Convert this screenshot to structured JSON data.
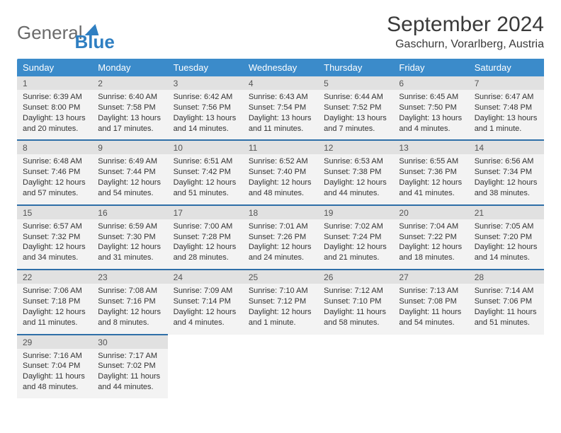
{
  "logo": {
    "general": "General",
    "blue": "Blue"
  },
  "title": "September 2024",
  "location": "Gaschurn, Vorarlberg, Austria",
  "headers": [
    "Sunday",
    "Monday",
    "Tuesday",
    "Wednesday",
    "Thursday",
    "Friday",
    "Saturday"
  ],
  "colors": {
    "header_bg": "#3b8bca",
    "accent": "#2f6fa8",
    "daynum_bg": "#e1e1e1",
    "cell_bg": "#f3f3f3"
  },
  "weeks": [
    {
      "nums": [
        "1",
        "2",
        "3",
        "4",
        "5",
        "6",
        "7"
      ],
      "cells": [
        {
          "sr": "Sunrise: 6:39 AM",
          "ss": "Sunset: 8:00 PM",
          "dl": "Daylight: 13 hours and 20 minutes."
        },
        {
          "sr": "Sunrise: 6:40 AM",
          "ss": "Sunset: 7:58 PM",
          "dl": "Daylight: 13 hours and 17 minutes."
        },
        {
          "sr": "Sunrise: 6:42 AM",
          "ss": "Sunset: 7:56 PM",
          "dl": "Daylight: 13 hours and 14 minutes."
        },
        {
          "sr": "Sunrise: 6:43 AM",
          "ss": "Sunset: 7:54 PM",
          "dl": "Daylight: 13 hours and 11 minutes."
        },
        {
          "sr": "Sunrise: 6:44 AM",
          "ss": "Sunset: 7:52 PM",
          "dl": "Daylight: 13 hours and 7 minutes."
        },
        {
          "sr": "Sunrise: 6:45 AM",
          "ss": "Sunset: 7:50 PM",
          "dl": "Daylight: 13 hours and 4 minutes."
        },
        {
          "sr": "Sunrise: 6:47 AM",
          "ss": "Sunset: 7:48 PM",
          "dl": "Daylight: 13 hours and 1 minute."
        }
      ]
    },
    {
      "nums": [
        "8",
        "9",
        "10",
        "11",
        "12",
        "13",
        "14"
      ],
      "cells": [
        {
          "sr": "Sunrise: 6:48 AM",
          "ss": "Sunset: 7:46 PM",
          "dl": "Daylight: 12 hours and 57 minutes."
        },
        {
          "sr": "Sunrise: 6:49 AM",
          "ss": "Sunset: 7:44 PM",
          "dl": "Daylight: 12 hours and 54 minutes."
        },
        {
          "sr": "Sunrise: 6:51 AM",
          "ss": "Sunset: 7:42 PM",
          "dl": "Daylight: 12 hours and 51 minutes."
        },
        {
          "sr": "Sunrise: 6:52 AM",
          "ss": "Sunset: 7:40 PM",
          "dl": "Daylight: 12 hours and 48 minutes."
        },
        {
          "sr": "Sunrise: 6:53 AM",
          "ss": "Sunset: 7:38 PM",
          "dl": "Daylight: 12 hours and 44 minutes."
        },
        {
          "sr": "Sunrise: 6:55 AM",
          "ss": "Sunset: 7:36 PM",
          "dl": "Daylight: 12 hours and 41 minutes."
        },
        {
          "sr": "Sunrise: 6:56 AM",
          "ss": "Sunset: 7:34 PM",
          "dl": "Daylight: 12 hours and 38 minutes."
        }
      ]
    },
    {
      "nums": [
        "15",
        "16",
        "17",
        "18",
        "19",
        "20",
        "21"
      ],
      "cells": [
        {
          "sr": "Sunrise: 6:57 AM",
          "ss": "Sunset: 7:32 PM",
          "dl": "Daylight: 12 hours and 34 minutes."
        },
        {
          "sr": "Sunrise: 6:59 AM",
          "ss": "Sunset: 7:30 PM",
          "dl": "Daylight: 12 hours and 31 minutes."
        },
        {
          "sr": "Sunrise: 7:00 AM",
          "ss": "Sunset: 7:28 PM",
          "dl": "Daylight: 12 hours and 28 minutes."
        },
        {
          "sr": "Sunrise: 7:01 AM",
          "ss": "Sunset: 7:26 PM",
          "dl": "Daylight: 12 hours and 24 minutes."
        },
        {
          "sr": "Sunrise: 7:02 AM",
          "ss": "Sunset: 7:24 PM",
          "dl": "Daylight: 12 hours and 21 minutes."
        },
        {
          "sr": "Sunrise: 7:04 AM",
          "ss": "Sunset: 7:22 PM",
          "dl": "Daylight: 12 hours and 18 minutes."
        },
        {
          "sr": "Sunrise: 7:05 AM",
          "ss": "Sunset: 7:20 PM",
          "dl": "Daylight: 12 hours and 14 minutes."
        }
      ]
    },
    {
      "nums": [
        "22",
        "23",
        "24",
        "25",
        "26",
        "27",
        "28"
      ],
      "cells": [
        {
          "sr": "Sunrise: 7:06 AM",
          "ss": "Sunset: 7:18 PM",
          "dl": "Daylight: 12 hours and 11 minutes."
        },
        {
          "sr": "Sunrise: 7:08 AM",
          "ss": "Sunset: 7:16 PM",
          "dl": "Daylight: 12 hours and 8 minutes."
        },
        {
          "sr": "Sunrise: 7:09 AM",
          "ss": "Sunset: 7:14 PM",
          "dl": "Daylight: 12 hours and 4 minutes."
        },
        {
          "sr": "Sunrise: 7:10 AM",
          "ss": "Sunset: 7:12 PM",
          "dl": "Daylight: 12 hours and 1 minute."
        },
        {
          "sr": "Sunrise: 7:12 AM",
          "ss": "Sunset: 7:10 PM",
          "dl": "Daylight: 11 hours and 58 minutes."
        },
        {
          "sr": "Sunrise: 7:13 AM",
          "ss": "Sunset: 7:08 PM",
          "dl": "Daylight: 11 hours and 54 minutes."
        },
        {
          "sr": "Sunrise: 7:14 AM",
          "ss": "Sunset: 7:06 PM",
          "dl": "Daylight: 11 hours and 51 minutes."
        }
      ]
    },
    {
      "nums": [
        "29",
        "30",
        "",
        "",
        "",
        "",
        ""
      ],
      "cells": [
        {
          "sr": "Sunrise: 7:16 AM",
          "ss": "Sunset: 7:04 PM",
          "dl": "Daylight: 11 hours and 48 minutes."
        },
        {
          "sr": "Sunrise: 7:17 AM",
          "ss": "Sunset: 7:02 PM",
          "dl": "Daylight: 11 hours and 44 minutes."
        },
        null,
        null,
        null,
        null,
        null
      ]
    }
  ]
}
